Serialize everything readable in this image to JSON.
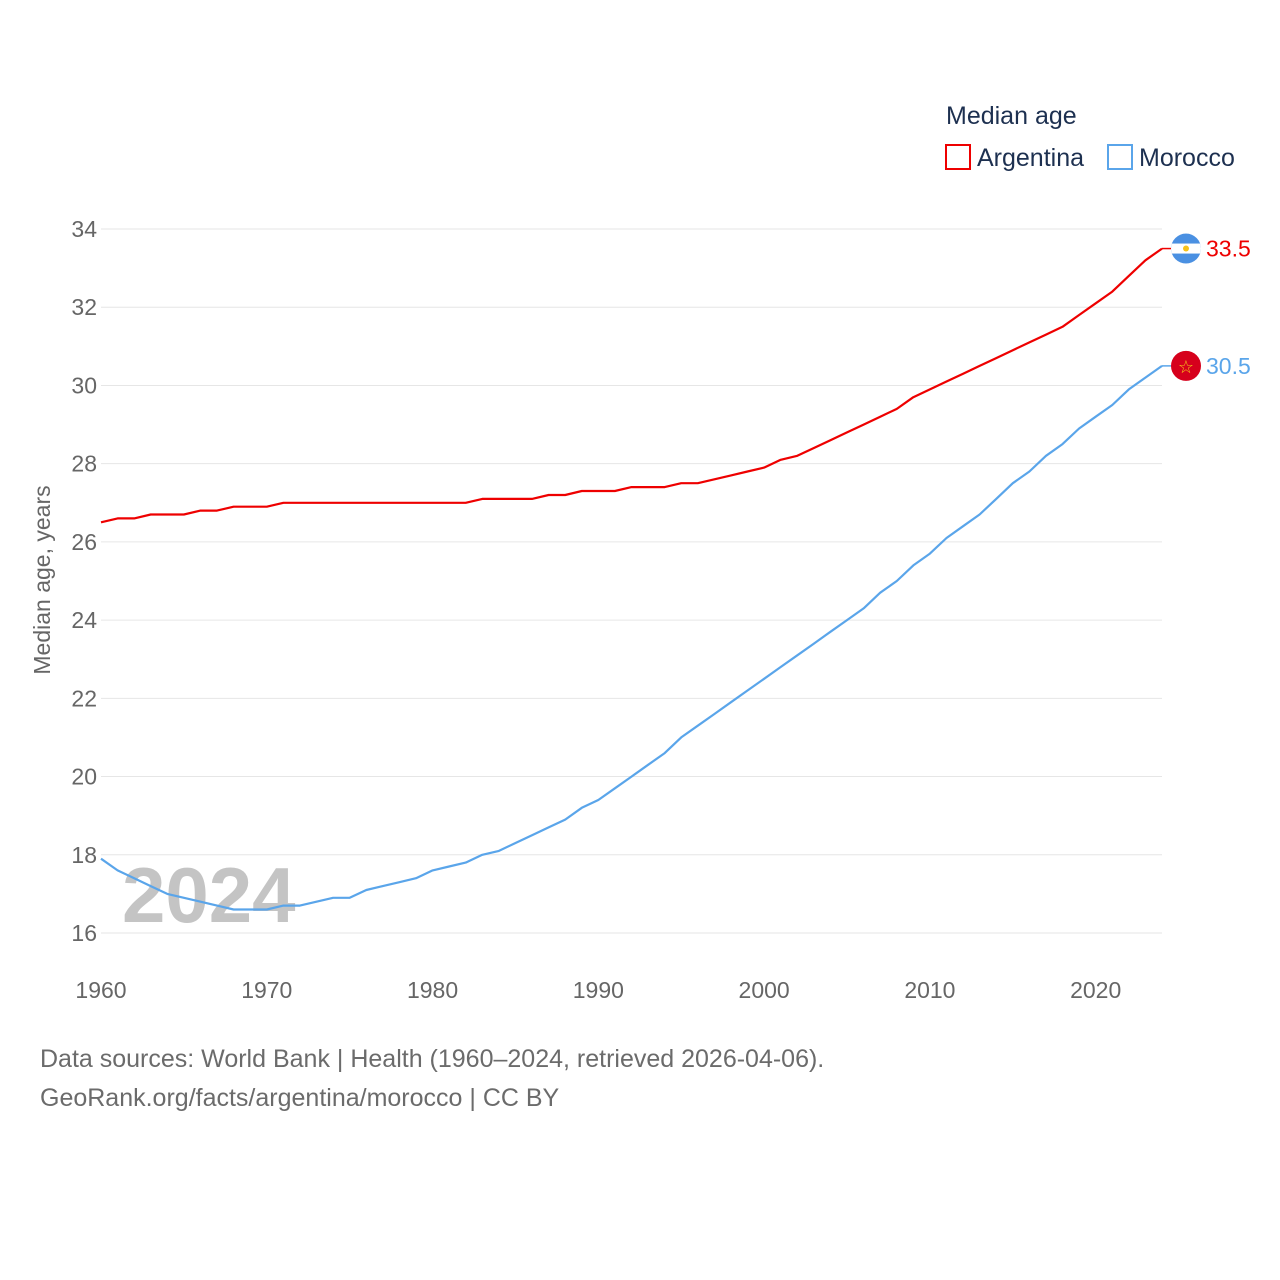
{
  "chart_data": {
    "type": "line",
    "title": "Median age",
    "xlabel": "",
    "ylabel": "Median age, years",
    "xlim": [
      1960,
      2024
    ],
    "ylim": [
      16,
      34
    ],
    "yticks": [
      16,
      18,
      20,
      22,
      24,
      26,
      28,
      30,
      32,
      34
    ],
    "xticks": [
      1960,
      1970,
      1980,
      1990,
      2000,
      2010,
      2020
    ],
    "grid": true,
    "legend_position": "top-right",
    "watermark_year": "2024",
    "x": [
      1960,
      1961,
      1962,
      1963,
      1964,
      1965,
      1966,
      1967,
      1968,
      1969,
      1970,
      1971,
      1972,
      1973,
      1974,
      1975,
      1976,
      1977,
      1978,
      1979,
      1980,
      1981,
      1982,
      1983,
      1984,
      1985,
      1986,
      1987,
      1988,
      1989,
      1990,
      1991,
      1992,
      1993,
      1994,
      1995,
      1996,
      1997,
      1998,
      1999,
      2000,
      2001,
      2002,
      2003,
      2004,
      2005,
      2006,
      2007,
      2008,
      2009,
      2010,
      2011,
      2012,
      2013,
      2014,
      2015,
      2016,
      2017,
      2018,
      2019,
      2020,
      2021,
      2022,
      2023,
      2024
    ],
    "series": [
      {
        "name": "Argentina",
        "color": "#ee0000",
        "end_label": "33.5",
        "values": [
          26.5,
          26.6,
          26.6,
          26.7,
          26.7,
          26.7,
          26.8,
          26.8,
          26.9,
          26.9,
          26.9,
          27.0,
          27.0,
          27.0,
          27.0,
          27.0,
          27.0,
          27.0,
          27.0,
          27.0,
          27.0,
          27.0,
          27.0,
          27.1,
          27.1,
          27.1,
          27.1,
          27.2,
          27.2,
          27.3,
          27.3,
          27.3,
          27.4,
          27.4,
          27.4,
          27.5,
          27.5,
          27.6,
          27.7,
          27.8,
          27.9,
          28.1,
          28.2,
          28.4,
          28.6,
          28.8,
          29.0,
          29.2,
          29.4,
          29.7,
          29.9,
          30.1,
          30.3,
          30.5,
          30.7,
          30.9,
          31.1,
          31.3,
          31.5,
          31.8,
          32.1,
          32.4,
          32.8,
          33.2,
          33.5
        ]
      },
      {
        "name": "Morocco",
        "color": "#5aa5ea",
        "end_label": "30.5",
        "values": [
          17.9,
          17.6,
          17.4,
          17.2,
          17.0,
          16.9,
          16.8,
          16.7,
          16.6,
          16.6,
          16.6,
          16.7,
          16.7,
          16.8,
          16.9,
          16.9,
          17.1,
          17.2,
          17.3,
          17.4,
          17.6,
          17.7,
          17.8,
          18.0,
          18.1,
          18.3,
          18.5,
          18.7,
          18.9,
          19.2,
          19.4,
          19.7,
          20.0,
          20.3,
          20.6,
          21.0,
          21.3,
          21.6,
          21.9,
          22.2,
          22.5,
          22.8,
          23.1,
          23.4,
          23.7,
          24.0,
          24.3,
          24.7,
          25.0,
          25.4,
          25.7,
          26.1,
          26.4,
          26.7,
          27.1,
          27.5,
          27.8,
          28.2,
          28.5,
          28.9,
          29.2,
          29.5,
          29.9,
          30.2,
          30.5
        ]
      }
    ]
  },
  "footer": {
    "line1": "Data sources: World Bank | Health (1960–2024, retrieved 2026-04-06).",
    "line2": "GeoRank.org/facts/argentina/morocco | CC BY"
  }
}
